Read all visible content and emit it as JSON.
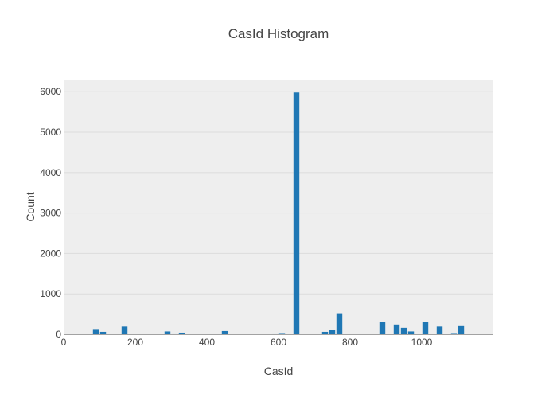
{
  "chart_data": {
    "type": "bar",
    "title": "CasId Histogram",
    "xlabel": "CasId",
    "ylabel": "Count",
    "xlim": [
      0,
      1200
    ],
    "ylim": [
      0,
      6300
    ],
    "x_ticks": [
      0,
      200,
      400,
      600,
      800,
      1000
    ],
    "y_ticks": [
      0,
      1000,
      2000,
      3000,
      4000,
      5000,
      6000
    ],
    "bin_width": 20,
    "grid": true,
    "colors": {
      "bar": "#1f77b4",
      "plot_bg": "#eeeeee",
      "grid": "#dcdcdc",
      "text": "#444444"
    },
    "bins": [
      {
        "x": 10,
        "count": 10
      },
      {
        "x": 90,
        "count": 130
      },
      {
        "x": 110,
        "count": 60
      },
      {
        "x": 170,
        "count": 190
      },
      {
        "x": 210,
        "count": 5
      },
      {
        "x": 290,
        "count": 70
      },
      {
        "x": 310,
        "count": 20
      },
      {
        "x": 330,
        "count": 40
      },
      {
        "x": 390,
        "count": 8
      },
      {
        "x": 450,
        "count": 80
      },
      {
        "x": 590,
        "count": 20
      },
      {
        "x": 610,
        "count": 30
      },
      {
        "x": 650,
        "count": 5980
      },
      {
        "x": 730,
        "count": 60
      },
      {
        "x": 750,
        "count": 100
      },
      {
        "x": 770,
        "count": 520
      },
      {
        "x": 870,
        "count": 10
      },
      {
        "x": 890,
        "count": 310
      },
      {
        "x": 930,
        "count": 240
      },
      {
        "x": 950,
        "count": 160
      },
      {
        "x": 970,
        "count": 70
      },
      {
        "x": 1010,
        "count": 310
      },
      {
        "x": 1050,
        "count": 190
      },
      {
        "x": 1090,
        "count": 30
      },
      {
        "x": 1110,
        "count": 220
      },
      {
        "x": 1150,
        "count": 10
      }
    ]
  }
}
